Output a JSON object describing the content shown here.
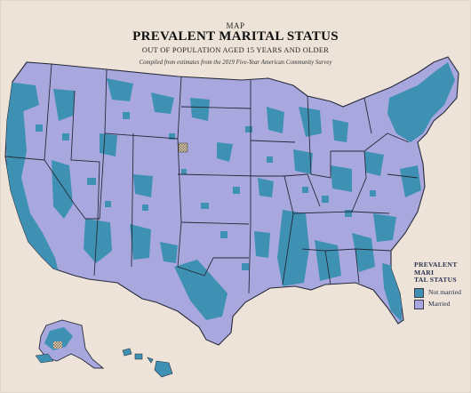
{
  "header": {
    "kicker": "MAP",
    "title": "PREVALENT MARITAL STATUS",
    "subtitle": "OUT OF POPULATION AGED 15 YEARS AND OLDER",
    "source": "Compiled from estimates from the 2019 Five-Year American Community Survey"
  },
  "legend": {
    "title_line1": "PREVALENT MARI",
    "title_line2": "TAL STATUS",
    "items": [
      {
        "label": "Not married",
        "color": "#3e91b3"
      },
      {
        "label": "Married",
        "color": "#a9a8de"
      }
    ]
  },
  "colors": {
    "background": "#ede3d8",
    "married": "#a9a8de",
    "not_married": "#3e91b3",
    "no_data_pattern": "#c9b89a",
    "border": "#262a3a"
  }
}
